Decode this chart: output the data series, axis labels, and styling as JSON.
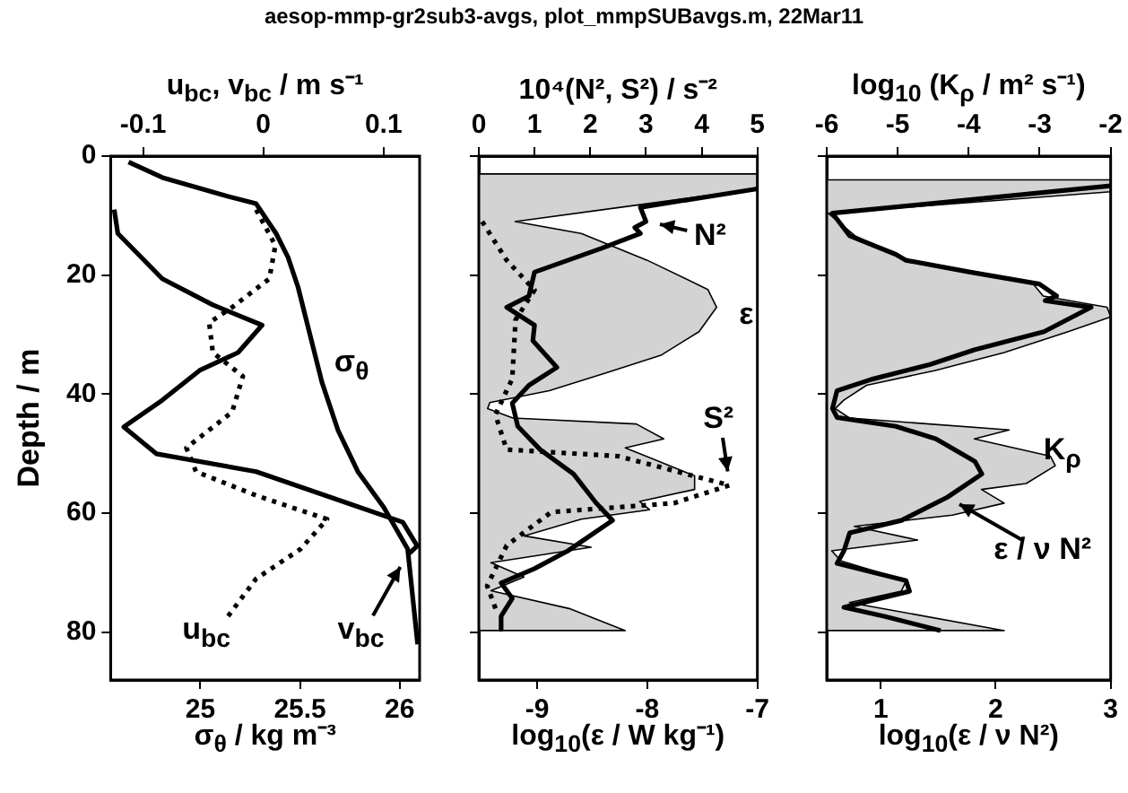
{
  "chart_data": [
    {
      "type": "line",
      "title": "aesop-mmp-gr2sub3-avgs, plot_mmpSUBavgs.m, 22Mar11",
      "xlabel": "σ$_{θ}$ / kg m⁻³",
      "x2label": "u$_{bc}$, v$_{bc}$ / m s⁻¹",
      "ylabel": "Depth / m",
      "xlim": [
        24.55,
        26.1
      ],
      "xticks": [
        25,
        25.5,
        26
      ],
      "x2lim": [
        -0.127,
        0.13
      ],
      "x2ticks": [
        -0.1,
        0,
        0.1
      ],
      "ylim": [
        88,
        0
      ],
      "yticks": [
        0,
        20,
        40,
        60,
        80
      ],
      "series": [
        {
          "name": "σ$_{θ}$",
          "color": "#000000",
          "x": [
            24.64,
            24.81,
            25.12,
            25.28,
            25.38,
            25.44,
            25.49,
            25.55,
            25.61,
            25.69,
            25.79,
            25.92,
            26.04,
            26.09
          ],
          "values": [
            1,
            3.6,
            6.6,
            8,
            13,
            17,
            22,
            30,
            38,
            46,
            53,
            59,
            66,
            82
          ]
        },
        {
          "name": "u$_{bc}$",
          "color": "#000000",
          "axis": "x2",
          "line_style": "dotted",
          "x": [
            -0.006,
            0.01,
            0.005,
            -0.026,
            -0.045,
            -0.042,
            -0.017,
            -0.026,
            -0.064,
            -0.056,
            -0.006,
            0.053,
            0.031,
            -0.006,
            -0.032
          ],
          "values": [
            9,
            15,
            20.6,
            25.4,
            28,
            33,
            37,
            43,
            49,
            53,
            57,
            61,
            66,
            71,
            78
          ]
        },
        {
          "name": "v$_{bc}$",
          "color": "#000000",
          "axis": "x2",
          "x": [
            -0.124,
            -0.121,
            -0.084,
            -0.042,
            -0.001,
            -0.021,
            -0.053,
            -0.084,
            -0.116,
            -0.089,
            -0.006,
            0.073,
            0.116,
            0.128,
            0.12
          ],
          "values": [
            9,
            13,
            20.6,
            25,
            28.4,
            33,
            36,
            41,
            45.5,
            50,
            53,
            58.5,
            61.5,
            65.5,
            67
          ]
        }
      ]
    },
    {
      "type": "line",
      "xlabel": "log$_{10}$(ε / W kg⁻¹)",
      "x2label": "10⁴(N², S²) / s⁻²",
      "xlim": [
        -9.53,
        -7
      ],
      "xticks": [
        -9,
        -8,
        -7
      ],
      "x2lim": [
        0,
        5
      ],
      "x2ticks": [
        0,
        1,
        2,
        3,
        4,
        5
      ],
      "ylim": [
        88,
        0
      ],
      "yticks": [
        0,
        20,
        40,
        60,
        80
      ],
      "tick_labels": "x",
      "series": [
        {
          "name": "ε",
          "type": "area",
          "color": "#d3d3d3",
          "x": [
            -9.53,
            -7,
            -7,
            -8.2,
            -9.2,
            -8.6,
            -8,
            -7.45,
            -7.37,
            -7.53,
            -7.87,
            -8.37,
            -8.89,
            -9.43,
            -9.45,
            -9.22,
            -8.1,
            -7.85,
            -8.2,
            -7.57,
            -7.57,
            -8.07,
            -7.98,
            -8.6,
            -9.12,
            -8.51,
            -9.42,
            -9.12,
            -9.42,
            -8.71,
            -8.2,
            -9.53
          ],
          "values": [
            3,
            3,
            5.5,
            8.5,
            11,
            13,
            17.5,
            22.4,
            25.4,
            29.5,
            33.4,
            36.4,
            39.4,
            41.4,
            42.4,
            44,
            45,
            47.5,
            49,
            53.7,
            56,
            58,
            59.4,
            61,
            63.8,
            65.7,
            68.3,
            70.7,
            73,
            76,
            79.7,
            79.7
          ]
        },
        {
          "name": "N²",
          "color": "#000000",
          "axis": "x2",
          "x": [
            5,
            2.9,
            3.0,
            2.8,
            2.9,
            2.2,
            1.0,
            0.9,
            0.5,
            1.0,
            0.97,
            1.4,
            0.9,
            0.6,
            0.7,
            1.1,
            1.7,
            2.1,
            2.4,
            1.6,
            1.0,
            0.4,
            0.6,
            0.4,
            0.4
          ],
          "values": [
            5.5,
            8.6,
            11,
            12,
            13,
            15.5,
            19.5,
            23.5,
            25.4,
            28.4,
            31,
            35.5,
            38.5,
            41.5,
            45.4,
            49.3,
            53.4,
            58.2,
            61.2,
            66.3,
            69.3,
            71.7,
            74.3,
            77.3,
            79.5
          ]
        },
        {
          "name": "S²",
          "color": "#000000",
          "axis": "x2",
          "line_style": "dotted",
          "x": [
            0.06,
            0.5,
            1.0,
            0.66,
            0.6,
            0.3,
            0.35,
            0.5,
            2.5,
            4.5,
            3.5,
            1.3,
            0.5,
            0.15,
            0.3
          ],
          "values": [
            11,
            17.5,
            22.5,
            27.5,
            37.4,
            43.4,
            45,
            49.3,
            50.4,
            55.3,
            58.3,
            59.8,
            65.4,
            72.2,
            76
          ]
        }
      ]
    },
    {
      "type": "line",
      "xlabel": "log$_{10}$(ε / ν N²)",
      "x2label": "log$_{10}$ (K$_{ρ}$ / m² s⁻¹)",
      "xlim": [
        0.53,
        3
      ],
      "xticks": [
        1,
        2,
        3
      ],
      "x2lim": [
        -6,
        -2
      ],
      "x2ticks": [
        -6,
        -5,
        -4,
        -3,
        -2
      ],
      "ylim": [
        88,
        0
      ],
      "yticks": [
        0,
        20,
        40,
        60,
        80
      ],
      "tick_labels": "x",
      "series": [
        {
          "name": "K$_{ρ}$",
          "type": "area",
          "color": "#d3d3d3",
          "axis": "x2",
          "x": [
            -6,
            -2,
            -2,
            -5.98,
            -5.6,
            -4.88,
            -3.09,
            -2.95,
            -2.05,
            -2,
            -2.6,
            -3.5,
            -4.47,
            -5.44,
            -5.76,
            -5.88,
            -5.68,
            -3.43,
            -3.92,
            -2.85,
            -2.78,
            -3.19,
            -3.82,
            -3.5,
            -4.23,
            -5.61,
            -4.72,
            -5.93,
            -5.8,
            -4.88,
            -4.95,
            -5.68,
            -3.5,
            -6
          ],
          "values": [
            4,
            4,
            6,
            9.6,
            13.4,
            17.5,
            21.5,
            23.5,
            25.4,
            27,
            29.5,
            33,
            36,
            38.5,
            41,
            42.4,
            44,
            46,
            47.5,
            50.4,
            52,
            55,
            56,
            58.3,
            60.3,
            62.2,
            64.5,
            66.3,
            68,
            71.3,
            73.1,
            75,
            79.7,
            79.7
          ]
        },
        {
          "name": "ε / ν N²",
          "color": "#000000",
          "x": [
            3,
            0.58,
            0.73,
            1.13,
            1.22,
            1.78,
            2.38,
            2.53,
            2.43,
            2.83,
            2.42,
            1.82,
            1.43,
            0.92,
            0.62,
            0.58,
            0.62,
            1.13,
            1.48,
            1.82,
            1.88,
            1.58,
            1.18,
            0.73,
            0.68,
            0.62,
            1.22,
            1.25,
            0.68,
            1.03,
            1.52
          ],
          "values": [
            5,
            9.6,
            13.4,
            16.5,
            17.5,
            19.5,
            21.5,
            23.5,
            24.3,
            25.4,
            29.5,
            32.5,
            35,
            37.5,
            39.4,
            42.4,
            43.9,
            45.4,
            47.5,
            51.3,
            53.4,
            57.3,
            61.2,
            63.3,
            66.3,
            68.4,
            71.3,
            73.1,
            75.8,
            77.3,
            79.7
          ]
        }
      ]
    }
  ]
}
